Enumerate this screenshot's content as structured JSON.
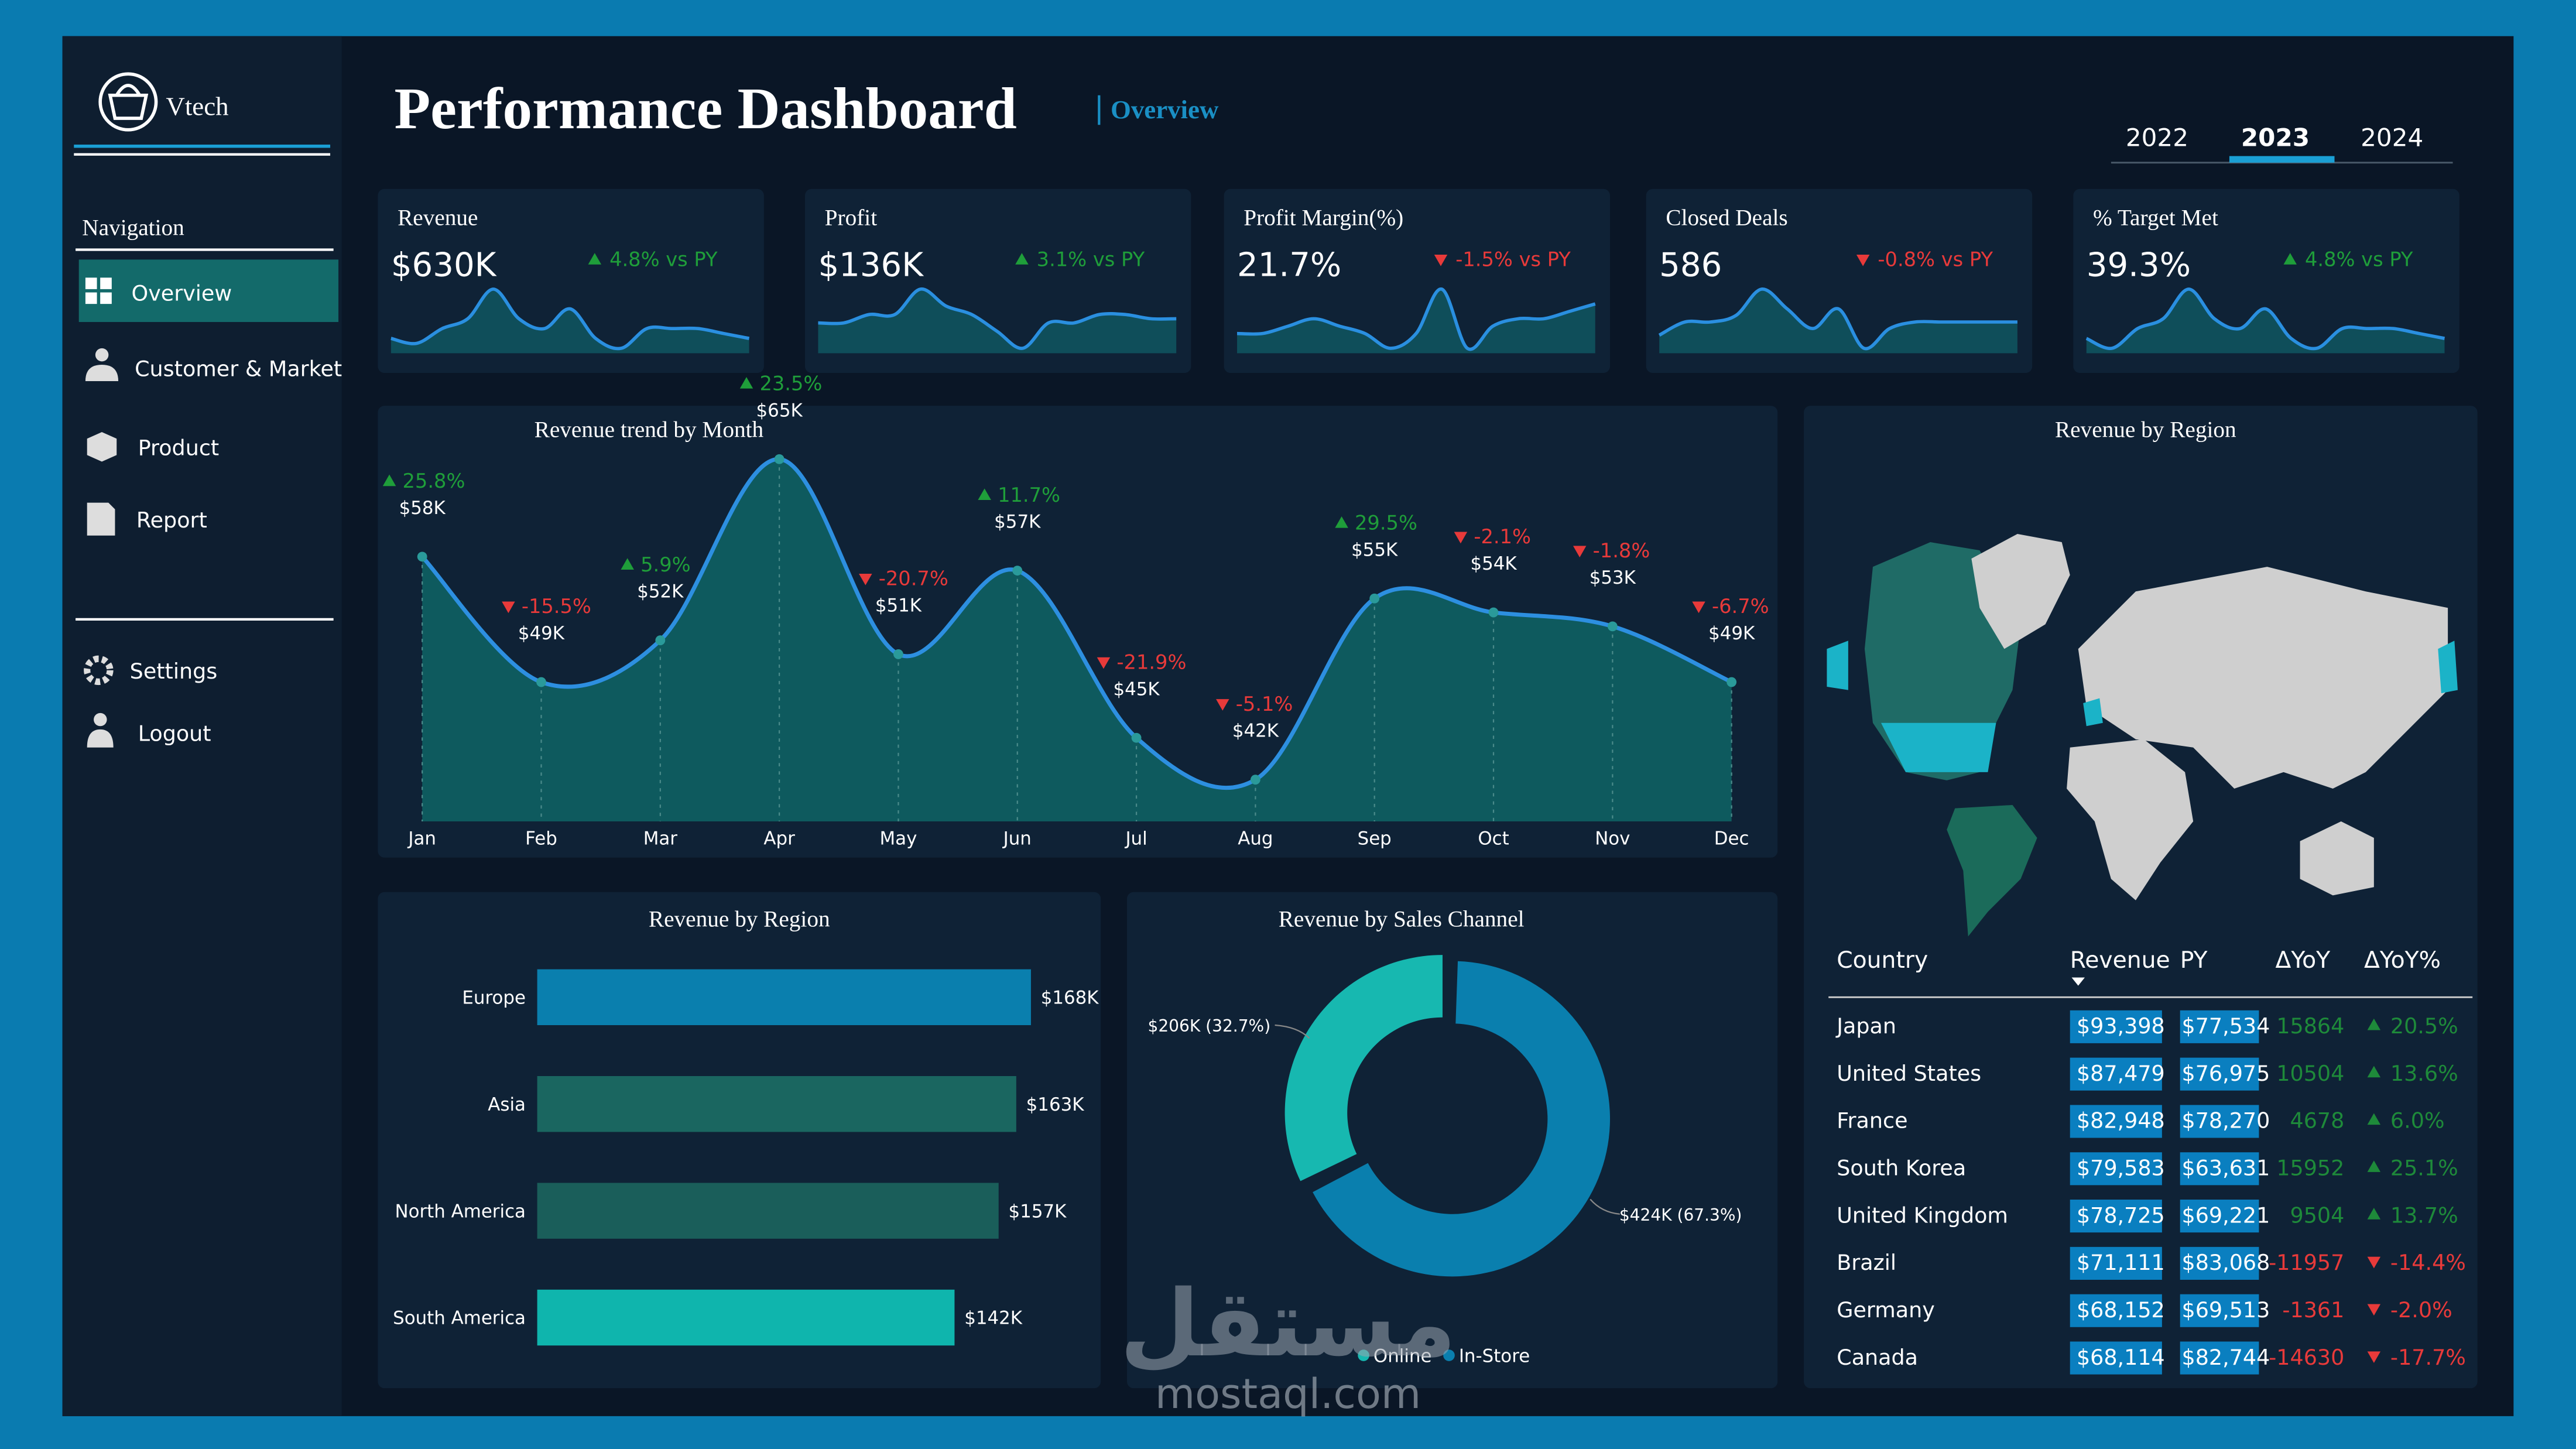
{
  "brand": "Vtech",
  "header": {
    "title": "Performance Dashboard",
    "subtitle": "Overview",
    "years": [
      "2022",
      "2023",
      "2024"
    ]
  },
  "nav": {
    "heading": "Navigation",
    "items": [
      "Overview",
      "Customer & Market",
      "Product",
      "Report"
    ],
    "footer_items": [
      "Settings",
      "Logout"
    ]
  },
  "kpis": [
    {
      "label": "Revenue",
      "value": "$630K",
      "change": "4.8% vs PY",
      "trend": "up",
      "sparkline": [
        4,
        3.5,
        5,
        6,
        9,
        6,
        5,
        7,
        4,
        3,
        5,
        5,
        5,
        4.5,
        4
      ]
    },
    {
      "label": "Profit",
      "value": "$136K",
      "change": "3.1% vs PY",
      "trend": "up",
      "sparkline": [
        5,
        5,
        6,
        6,
        9,
        7,
        6,
        4,
        2,
        5,
        5,
        6,
        6,
        5.5,
        5.5
      ]
    },
    {
      "label": "Profit Margin(%)",
      "value": "21.7%",
      "change": "-1.5% vs PY",
      "trend": "down",
      "sparkline": [
        4,
        4,
        4.5,
        5,
        4.5,
        4,
        3,
        4,
        7,
        3,
        4.5,
        5,
        5,
        5.5,
        6
      ]
    },
    {
      "label": "Closed Deals",
      "value": "586",
      "change": "-0.8% vs PY",
      "trend": "down",
      "sparkline": [
        2,
        4,
        4,
        5,
        9,
        6,
        3,
        6,
        0,
        3,
        4,
        4,
        4,
        4,
        4
      ]
    },
    {
      "label": "% Target Met",
      "value": "39.3%",
      "change": "4.8% vs PY",
      "trend": "up",
      "sparkline": [
        4,
        3,
        5,
        6,
        9,
        6,
        5,
        7,
        4,
        3,
        5,
        5,
        5,
        4.5,
        4
      ]
    }
  ],
  "chart_data": [
    {
      "type": "area",
      "title": "Revenue trend by Month",
      "categories": [
        "Jan",
        "Feb",
        "Mar",
        "Apr",
        "May",
        "Jun",
        "Jul",
        "Aug",
        "Sep",
        "Oct",
        "Nov",
        "Dec"
      ],
      "values": [
        58,
        49,
        52,
        65,
        51,
        57,
        45,
        42,
        55,
        54,
        53,
        49
      ],
      "value_labels": [
        "$58K",
        "$49K",
        "$52K",
        "$65K",
        "$51K",
        "$57K",
        "$45K",
        "$42K",
        "$55K",
        "$54K",
        "$53K",
        "$49K"
      ],
      "changes": [
        25.8,
        -15.5,
        5.9,
        23.5,
        -20.7,
        11.7,
        -21.9,
        -5.1,
        29.5,
        -2.1,
        -1.8,
        -6.7
      ],
      "change_labels": [
        "25.8%",
        "-15.5%",
        "5.9%",
        "23.5%",
        "-20.7%",
        "11.7%",
        "-21.9%",
        "-5.1%",
        "29.5%",
        "-2.1%",
        "-1.8%",
        "-6.7%"
      ],
      "ylim": [
        39,
        66
      ],
      "color": "#2d8fe0",
      "fill": "#0e5a5e"
    },
    {
      "type": "bar",
      "title": "Revenue by Region",
      "categories": [
        "Europe",
        "Asia",
        "North America",
        "South America"
      ],
      "values": [
        168,
        163,
        157,
        142
      ],
      "value_labels": [
        "$168K",
        "$163K",
        "$157K",
        "$142K"
      ],
      "colors": [
        "#0a7fae",
        "#1a6660",
        "#1a5e5a",
        "#0fb5ad"
      ],
      "xlim": [
        0,
        180
      ]
    },
    {
      "type": "donut",
      "title": "Revenue by Sales Channel",
      "categories": [
        "Online",
        "In-Store"
      ],
      "values": [
        206,
        424
      ],
      "value_labels": [
        "$206K (32.7%)",
        "$424K (67.3%)"
      ],
      "colors": [
        "#17b8b0",
        "#0a7fae"
      ]
    }
  ],
  "map": {
    "title": "Revenue by Region"
  },
  "table": {
    "columns": [
      "Country",
      "Revenue",
      "PY",
      "ΔYoY",
      "ΔYoY%"
    ],
    "rows": [
      [
        "Japan",
        "$93,398",
        "$77,534",
        "15864",
        "20.5%"
      ],
      [
        "United States",
        "$87,479",
        "$76,975",
        "10504",
        "13.6%"
      ],
      [
        "France",
        "$82,948",
        "$78,270",
        "4678",
        "6.0%"
      ],
      [
        "South Korea",
        "$79,583",
        "$63,631",
        "15952",
        "25.1%"
      ],
      [
        "United Kingdom",
        "$78,725",
        "$69,221",
        "9504",
        "13.7%"
      ],
      [
        "Brazil",
        "$71,111",
        "$83,068",
        "-11957",
        "-14.4%"
      ],
      [
        "Germany",
        "$68,152",
        "$69,513",
        "-1361",
        "-2.0%"
      ],
      [
        "Canada",
        "$68,114",
        "$82,744",
        "-14630",
        "-17.7%"
      ]
    ]
  },
  "watermark": {
    "arabic": "مستقل",
    "latin": "mostaql.com"
  }
}
